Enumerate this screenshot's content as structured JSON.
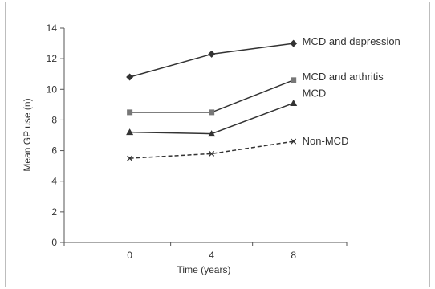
{
  "chart_data": {
    "type": "line",
    "title": "",
    "xlabel": "Time (years)",
    "ylabel": "Mean GP use (n)",
    "x": [
      0,
      4,
      8
    ],
    "xticks": [
      "0",
      "4",
      "8"
    ],
    "ylim": [
      0,
      14
    ],
    "yticks": [
      "0",
      "2",
      "4",
      "6",
      "8",
      "10",
      "12",
      "14"
    ],
    "grid": false,
    "legend": "inline labels at right end of each line",
    "series": [
      {
        "name": "MCD and depression",
        "values": [
          10.8,
          12.3,
          13.0
        ],
        "marker": "diamond",
        "dash": "solid",
        "color": "#333333"
      },
      {
        "name": "MCD and arthritis",
        "values": [
          8.5,
          8.5,
          10.6
        ],
        "marker": "square",
        "dash": "solid",
        "color": "#333333"
      },
      {
        "name": "MCD",
        "values": [
          7.2,
          7.1,
          9.1
        ],
        "marker": "triangle",
        "dash": "solid",
        "color": "#333333"
      },
      {
        "name": "Non-MCD",
        "values": [
          5.5,
          5.8,
          6.6
        ],
        "marker": "cross",
        "dash": "dashed",
        "color": "#333333"
      }
    ]
  }
}
